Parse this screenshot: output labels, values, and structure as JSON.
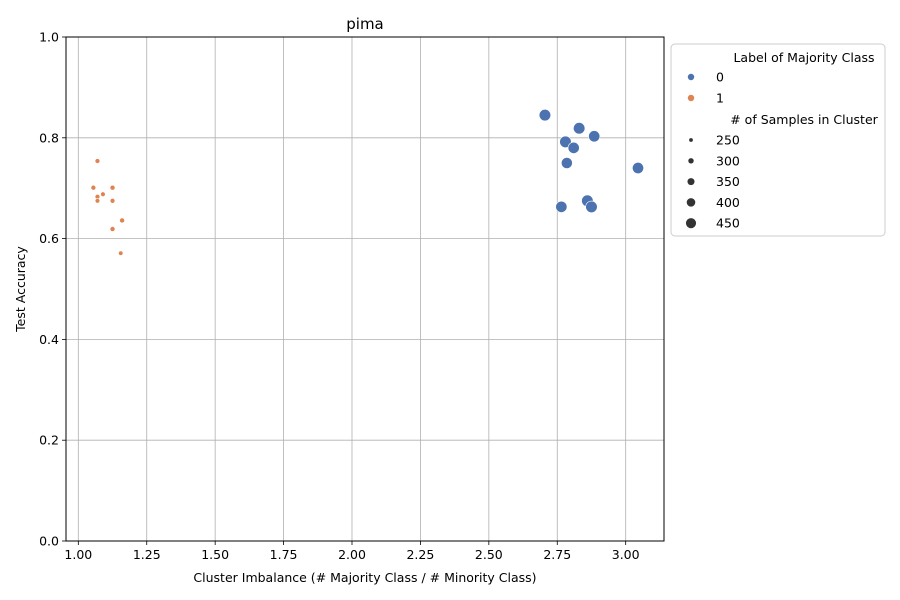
{
  "chart_data": {
    "type": "scatter",
    "title": "pima",
    "xlabel": "Cluster Imbalance (# Majority Class / # Minority Class)",
    "ylabel": "Test Accuracy",
    "xlim": [
      0.955,
      3.14
    ],
    "ylim": [
      0,
      1
    ],
    "xticks": [
      1.0,
      1.25,
      1.5,
      1.75,
      2.0,
      2.25,
      2.5,
      2.75,
      3.0
    ],
    "xtick_labels": [
      "1.00",
      "1.25",
      "1.50",
      "1.75",
      "2.00",
      "2.25",
      "2.50",
      "2.75",
      "3.00"
    ],
    "yticks": [
      0,
      0.2,
      0.4,
      0.6,
      0.8,
      1.0
    ],
    "ytick_labels": [
      "0.0",
      "0.2",
      "0.4",
      "0.6",
      "0.8",
      "1.0"
    ],
    "grid": true,
    "legend": {
      "placement": "outside-upper-right",
      "hue_title": "Label of Majority Class",
      "hue_entries": [
        {
          "label": "0",
          "color": "#4c72b0"
        },
        {
          "label": "1",
          "color": "#dd8452"
        }
      ],
      "size_title": "# of Samples in Cluster",
      "size_entries": [
        {
          "label": "250",
          "value": 250
        },
        {
          "label": "300",
          "value": 300
        },
        {
          "label": "350",
          "value": 350
        },
        {
          "label": "400",
          "value": 400
        },
        {
          "label": "450",
          "value": 450
        }
      ]
    },
    "series": [
      {
        "name": "0",
        "color": "#4c72b0",
        "points": [
          {
            "x": 2.705,
            "y": 0.845,
            "size": 480
          },
          {
            "x": 2.83,
            "y": 0.819,
            "size": 480
          },
          {
            "x": 2.885,
            "y": 0.803,
            "size": 470
          },
          {
            "x": 2.78,
            "y": 0.792,
            "size": 480
          },
          {
            "x": 2.81,
            "y": 0.78,
            "size": 470
          },
          {
            "x": 2.785,
            "y": 0.75,
            "size": 465
          },
          {
            "x": 3.045,
            "y": 0.74,
            "size": 470
          },
          {
            "x": 2.86,
            "y": 0.675,
            "size": 480
          },
          {
            "x": 2.765,
            "y": 0.663,
            "size": 470
          },
          {
            "x": 2.875,
            "y": 0.663,
            "size": 480
          }
        ]
      },
      {
        "name": "1",
        "color": "#dd8452",
        "points": [
          {
            "x": 1.07,
            "y": 0.754,
            "size": 265
          },
          {
            "x": 1.055,
            "y": 0.701,
            "size": 265
          },
          {
            "x": 1.125,
            "y": 0.701,
            "size": 270
          },
          {
            "x": 1.09,
            "y": 0.688,
            "size": 260
          },
          {
            "x": 1.07,
            "y": 0.683,
            "size": 265
          },
          {
            "x": 1.07,
            "y": 0.675,
            "size": 260
          },
          {
            "x": 1.125,
            "y": 0.675,
            "size": 265
          },
          {
            "x": 1.16,
            "y": 0.636,
            "size": 270
          },
          {
            "x": 1.125,
            "y": 0.619,
            "size": 270
          },
          {
            "x": 1.155,
            "y": 0.571,
            "size": 255
          }
        ]
      }
    ]
  }
}
